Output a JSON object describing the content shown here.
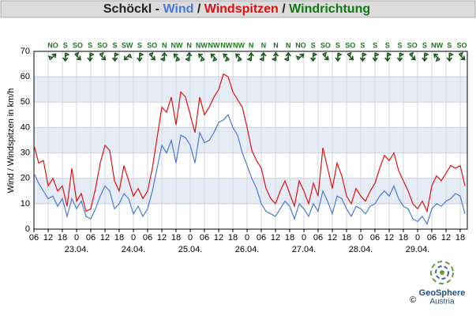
{
  "chart_data": {
    "type": "line",
    "title_parts": [
      {
        "text": "Schöckl - ",
        "color": "#222222"
      },
      {
        "text": "Wind",
        "color": "#4a78d8"
      },
      {
        "text": " / ",
        "color": "#222222"
      },
      {
        "text": "Windspitzen",
        "color": "#e01010"
      },
      {
        "text": " / ",
        "color": "#222222"
      },
      {
        "text": "Windrichtung",
        "color": "#117711"
      }
    ],
    "y_label": "Wind / Windspitzen in km/h",
    "x": [
      0,
      2,
      4,
      6,
      8,
      10,
      12,
      14,
      16,
      18,
      20,
      22,
      24,
      26,
      28,
      30,
      32,
      34,
      36,
      38,
      40,
      42,
      44,
      46,
      48,
      50,
      52,
      54,
      56,
      58,
      60,
      62,
      64,
      66,
      68,
      70,
      72,
      74,
      76,
      78,
      80,
      82,
      84,
      86,
      88,
      90,
      92,
      94,
      96,
      98,
      100,
      102,
      104,
      106,
      108,
      110,
      112,
      114,
      116,
      118,
      120,
      122,
      124,
      126,
      128,
      130,
      132,
      134,
      136,
      138,
      140,
      142,
      144,
      146,
      148,
      150,
      152,
      154,
      156,
      158,
      160,
      162,
      164,
      166,
      168,
      170,
      172,
      174,
      176,
      178,
      180,
      182
    ],
    "series": [
      {
        "name": "Wind",
        "color": "#4a78d8",
        "values": [
          22,
          18,
          15,
          12,
          13,
          9,
          12,
          5,
          12,
          8,
          11,
          5,
          4,
          8,
          13,
          17,
          15,
          8,
          10,
          14,
          12,
          6,
          9,
          5,
          8,
          15,
          24,
          33,
          30,
          35,
          26,
          37,
          36,
          33,
          26,
          38,
          34,
          35,
          38,
          42,
          43,
          45,
          40,
          37,
          30,
          25,
          20,
          16,
          10,
          7,
          6,
          5,
          8,
          11,
          9,
          4,
          10,
          8,
          5,
          10,
          7,
          15,
          11,
          6,
          13,
          12,
          8,
          5,
          9,
          8,
          6,
          9,
          10,
          13,
          15,
          13,
          17,
          12,
          9,
          8,
          4,
          3,
          5,
          2,
          8,
          10,
          9,
          11,
          12,
          14,
          13,
          6
        ]
      },
      {
        "name": "Windspitzen",
        "color": "#e01010",
        "values": [
          33,
          26,
          27,
          17,
          20,
          15,
          17,
          9,
          24,
          11,
          14,
          7,
          8,
          16,
          26,
          33,
          31,
          19,
          15,
          25,
          19,
          13,
          16,
          12,
          15,
          24,
          36,
          48,
          46,
          52,
          41,
          54,
          52,
          45,
          38,
          52,
          45,
          48,
          52,
          55,
          61,
          60,
          54,
          51,
          48,
          40,
          31,
          27,
          24,
          16,
          12,
          10,
          15,
          19,
          14,
          9,
          19,
          15,
          10,
          18,
          13,
          32,
          24,
          16,
          26,
          21,
          13,
          10,
          16,
          13,
          11,
          15,
          18,
          24,
          29,
          27,
          30,
          23,
          19,
          15,
          10,
          8,
          11,
          7,
          17,
          21,
          19,
          22,
          25,
          24,
          25,
          17
        ]
      }
    ],
    "xlim": [
      0,
      183
    ],
    "ylim": [
      0,
      70
    ],
    "yticks": [
      0,
      10,
      20,
      30,
      40,
      50,
      60,
      70
    ],
    "xticks": [
      {
        "value": 0,
        "label": "06"
      },
      {
        "value": 6,
        "label": "12"
      },
      {
        "value": 12,
        "label": "18"
      },
      {
        "value": 18,
        "label": "0"
      },
      {
        "value": 24,
        "label": "06"
      },
      {
        "value": 30,
        "label": "12"
      },
      {
        "value": 36,
        "label": "18"
      },
      {
        "value": 42,
        "label": "0"
      },
      {
        "value": 48,
        "label": "06"
      },
      {
        "value": 54,
        "label": "12"
      },
      {
        "value": 60,
        "label": "18"
      },
      {
        "value": 66,
        "label": "0"
      },
      {
        "value": 72,
        "label": "06"
      },
      {
        "value": 78,
        "label": "12"
      },
      {
        "value": 84,
        "label": "18"
      },
      {
        "value": 90,
        "label": "0"
      },
      {
        "value": 96,
        "label": "06"
      },
      {
        "value": 102,
        "label": "12"
      },
      {
        "value": 108,
        "label": "18"
      },
      {
        "value": 114,
        "label": "0"
      },
      {
        "value": 120,
        "label": "06"
      },
      {
        "value": 126,
        "label": "12"
      },
      {
        "value": 132,
        "label": "18"
      },
      {
        "value": 138,
        "label": "0"
      },
      {
        "value": 144,
        "label": "06"
      },
      {
        "value": 150,
        "label": "12"
      },
      {
        "value": 156,
        "label": "18"
      },
      {
        "value": 162,
        "label": "0"
      },
      {
        "value": 168,
        "label": "06"
      },
      {
        "value": 174,
        "label": "12"
      },
      {
        "value": 180,
        "label": "18"
      }
    ],
    "day_labels": [
      {
        "value": 18,
        "label": "23.04."
      },
      {
        "value": 42,
        "label": "24.04."
      },
      {
        "value": 66,
        "label": "25.04."
      },
      {
        "value": 90,
        "label": "26.04."
      },
      {
        "value": 114,
        "label": "27.04."
      },
      {
        "value": 138,
        "label": "28.04."
      },
      {
        "value": 162,
        "label": "29.04."
      }
    ],
    "wind_direction": [
      "NO",
      "S",
      "SO",
      "S",
      "SO",
      "S",
      "SW",
      "S",
      "SO",
      "N",
      "NW",
      "N",
      "NW",
      "NW",
      "NW",
      "NW",
      "N",
      "N",
      "N",
      "N",
      "NO",
      "S",
      "SO",
      "S",
      "SO",
      "S",
      "S",
      "S",
      "S",
      "SO",
      "S",
      "NW",
      "S",
      "SO"
    ],
    "grid": true
  },
  "footer": {
    "copyright": "©",
    "brand": "GeoSphere",
    "brand_sub": "Austria"
  }
}
